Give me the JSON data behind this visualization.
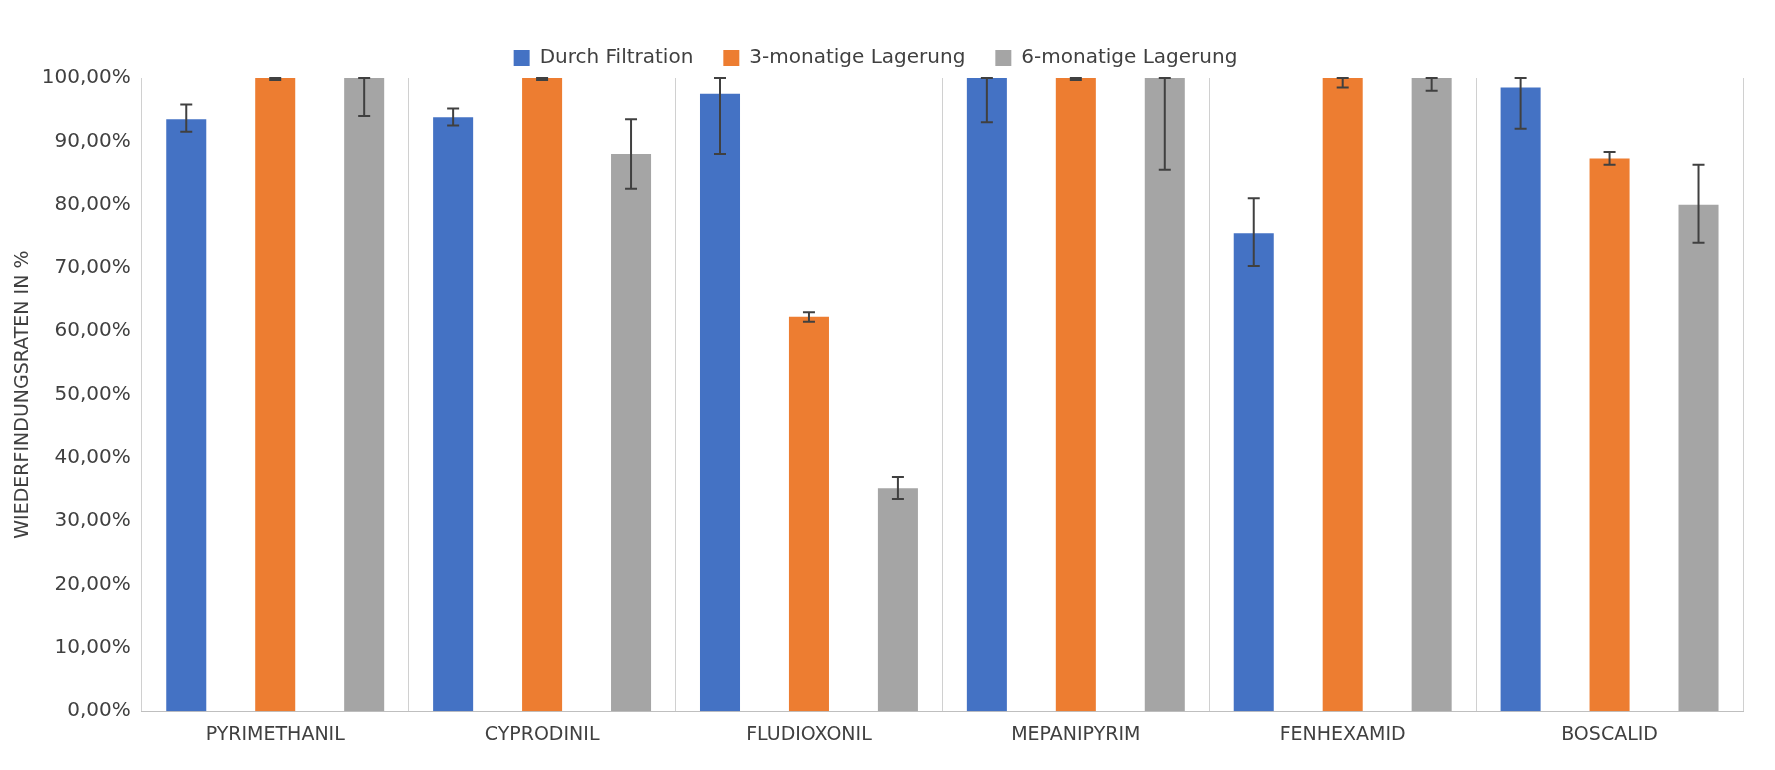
{
  "chart_data": {
    "type": "bar",
    "ylabel": "WIEDERFINDUNGSRATEN IN %",
    "categories": [
      "PYRIMETHANIL",
      "CYPRODINIL",
      "FLUDIOXONIL",
      "MEPANIPYRIM",
      "FENHEXAMID",
      "BOSCALID"
    ],
    "series": [
      {
        "name": "Durch Filtration",
        "color": "#4472c4",
        "values": [
          93.5,
          93.8,
          97.5,
          100,
          75.5,
          98.5
        ],
        "errors": [
          [
            91.5,
            95.8
          ],
          [
            92.5,
            95.2
          ],
          [
            88,
            100
          ],
          [
            93,
            100
          ],
          [
            70.3,
            81
          ],
          [
            92,
            100
          ]
        ]
      },
      {
        "name": "3-monatige Lagerung",
        "color": "#ed7d31",
        "values": [
          100,
          100,
          62.3,
          100,
          100,
          87.3
        ],
        "errors": [
          [
            99.7,
            100
          ],
          [
            99.7,
            100
          ],
          [
            61.5,
            63
          ],
          [
            99.7,
            100
          ],
          [
            98.5,
            100
          ],
          [
            86.3,
            88.3
          ]
        ]
      },
      {
        "name": "6-monatige Lagerung",
        "color": "#a5a5a5",
        "values": [
          100,
          88,
          35.2,
          100,
          100,
          80
        ],
        "errors": [
          [
            94,
            100
          ],
          [
            82.5,
            93.5
          ],
          [
            33.5,
            37
          ],
          [
            85.5,
            100
          ],
          [
            98,
            100
          ],
          [
            74,
            86.3
          ]
        ]
      }
    ],
    "ylim": [
      0,
      100
    ],
    "yticks": [
      {
        "value": 0,
        "label": "0,00%"
      },
      {
        "value": 10,
        "label": "10,00%"
      },
      {
        "value": 20,
        "label": "20,00%"
      },
      {
        "value": 30,
        "label": "30,00%"
      },
      {
        "value": 40,
        "label": "40,00%"
      },
      {
        "value": 50,
        "label": "50,00%"
      },
      {
        "value": 60,
        "label": "60,00%"
      },
      {
        "value": 70,
        "label": "70,00%"
      },
      {
        "value": 80,
        "label": "80,00%"
      },
      {
        "value": 90,
        "label": "90,00%"
      },
      {
        "value": 100,
        "label": "100,00%"
      }
    ],
    "grid": "x",
    "legend": "top"
  }
}
